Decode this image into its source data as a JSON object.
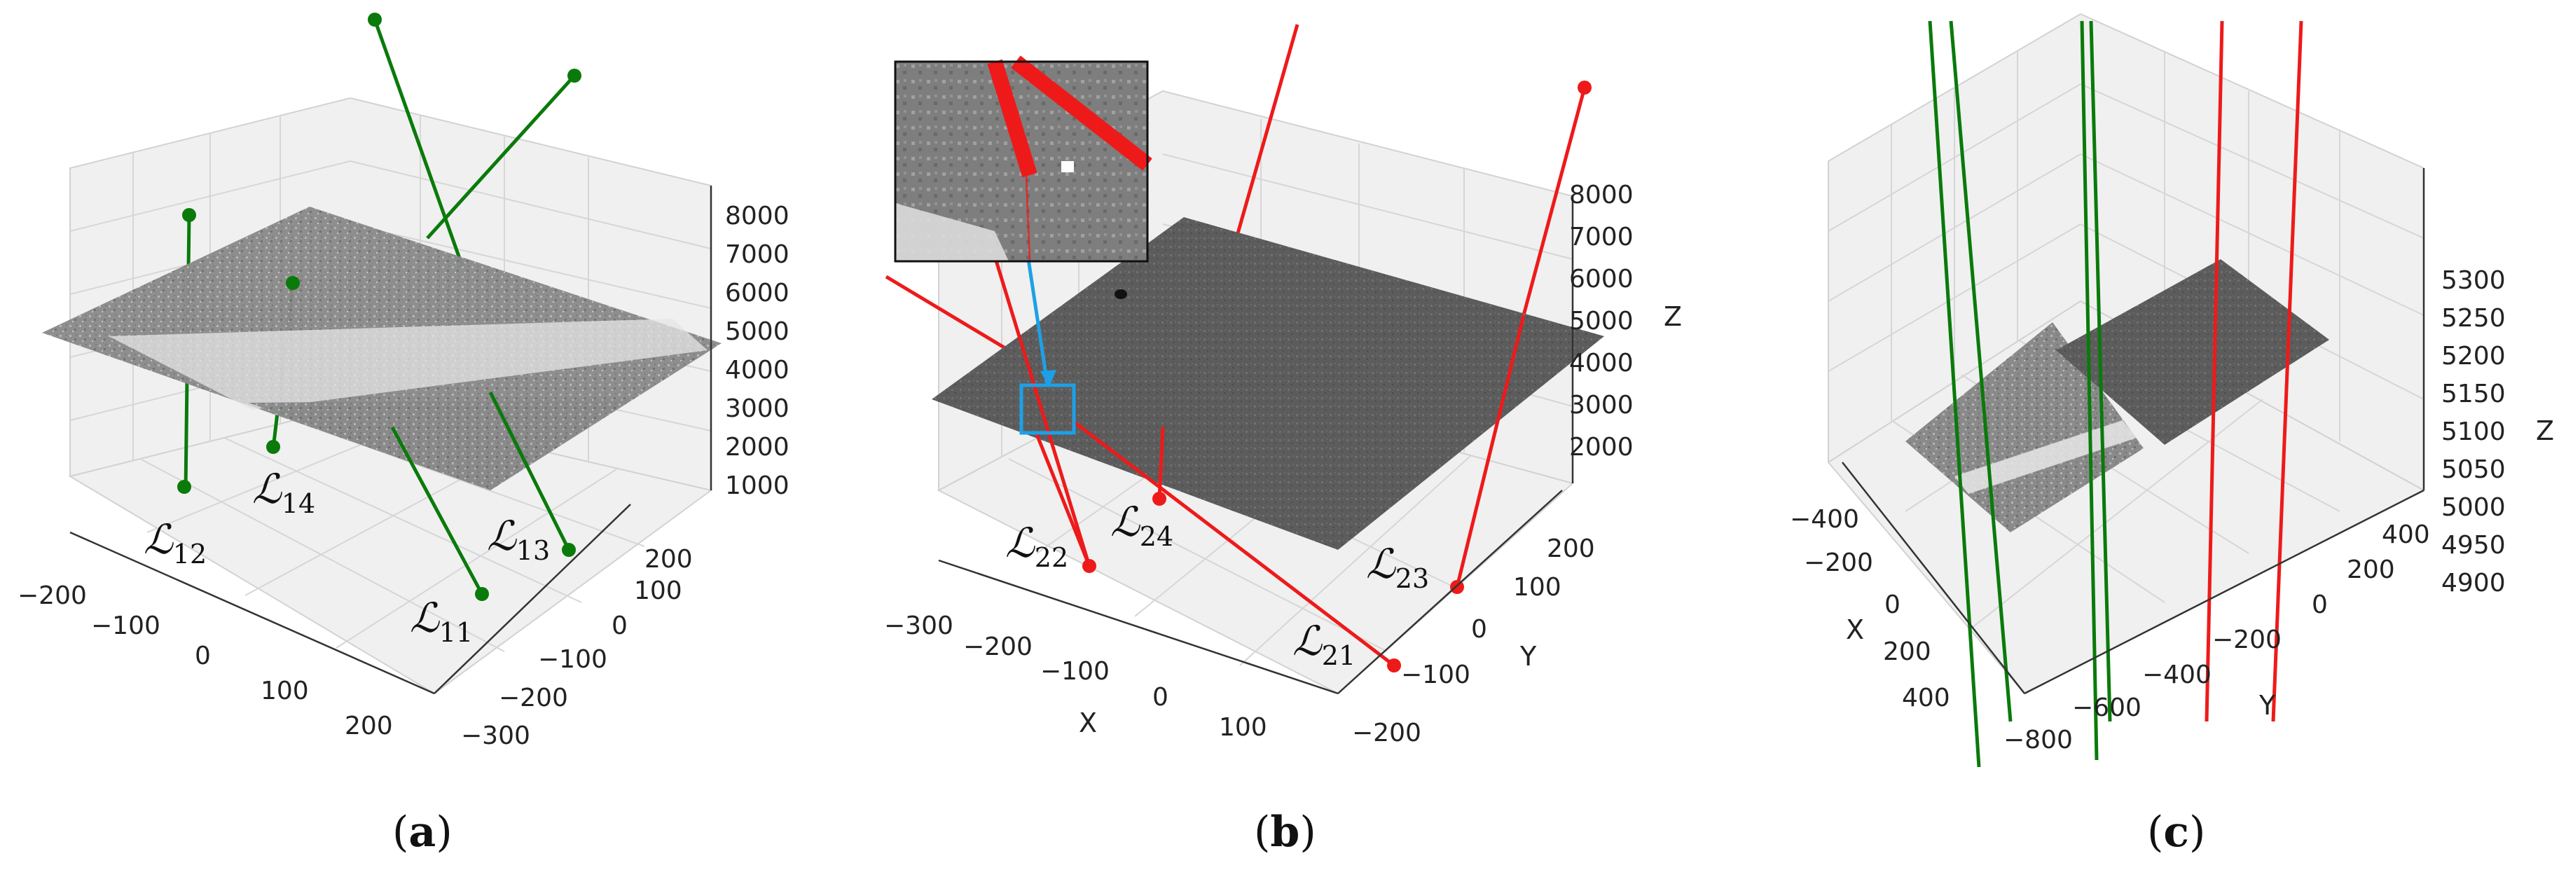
{
  "panels": [
    {
      "id": "a",
      "caption": "a",
      "z_ticks": [
        "8000",
        "7000",
        "6000",
        "5000",
        "4000",
        "3000",
        "2000",
        "1000"
      ],
      "x_ticks": [
        "−200",
        "−100",
        "0",
        "100",
        "200"
      ],
      "y_ticks": [
        "−300",
        "−200",
        "−100",
        "0",
        "100",
        "200"
      ],
      "line_labels": [
        {
          "base": "ℒ",
          "sub": "12"
        },
        {
          "base": "ℒ",
          "sub": "14"
        },
        {
          "base": "ℒ",
          "sub": "13"
        },
        {
          "base": "ℒ",
          "sub": "11"
        }
      ],
      "line_color": "#0a7a0a"
    },
    {
      "id": "b",
      "caption": "b",
      "z_ticks": [
        "8000",
        "7000",
        "6000",
        "5000",
        "4000",
        "3000",
        "2000"
      ],
      "z_label": "Z",
      "x_ticks": [
        "−300",
        "−200",
        "−100",
        "0",
        "100"
      ],
      "x_label": "X",
      "y_ticks": [
        "200",
        "100",
        "0",
        "−100",
        "−200"
      ],
      "y_label": "Y",
      "line_labels": [
        {
          "base": "ℒ",
          "sub": "22"
        },
        {
          "base": "ℒ",
          "sub": "24"
        },
        {
          "base": "ℒ",
          "sub": "23"
        },
        {
          "base": "ℒ",
          "sub": "21"
        }
      ],
      "line_color": "#ee1a1a",
      "highlight_color": "#1ea0e6"
    },
    {
      "id": "c",
      "caption": "c",
      "z_ticks": [
        "5300",
        "5250",
        "5200",
        "5150",
        "5100",
        "5050",
        "5000",
        "4950",
        "4900"
      ],
      "z_label": "Z",
      "x_ticks": [
        "−400",
        "−200",
        "0",
        "200",
        "400"
      ],
      "x_label": "X",
      "y_ticks": [
        "−800",
        "−600",
        "−400",
        "−200",
        "0",
        "200",
        "400"
      ],
      "y_label": "Y",
      "line_colors": [
        "#0a7a0a",
        "#ee1a1a"
      ]
    }
  ]
}
